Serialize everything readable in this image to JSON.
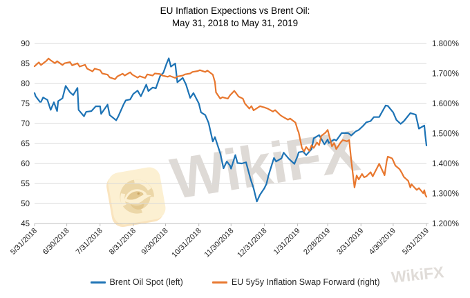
{
  "title": {
    "line1": "EU Inflation Expections vs Brent Oil:",
    "line2": "May 31, 2018 to May 31, 2019"
  },
  "watermark": {
    "center_text": "WikiFX",
    "corner_text": "WikiFX",
    "logo_icon": "wikifx-eagle-logo"
  },
  "legend": {
    "items": [
      {
        "label": "Brent Oil Spot (left)"
      },
      {
        "label": "EU 5y5y Inflation Swap Forward (right)"
      }
    ]
  },
  "colors": {
    "brent_blue": "#1d73b5",
    "inflation_orange": "#e8772e",
    "gridline": "#d9d9d9",
    "axis_line": "#bfbfbf",
    "axis_text": "#262626",
    "watermark_tile": "#fcf0d2",
    "watermark_emblem": "#ecd7a8"
  },
  "chart_data": {
    "type": "line",
    "title": "EU Inflation Expections vs Brent Oil: May 31, 2018 to May 31, 2019",
    "grid": true,
    "legend_position": "bottom",
    "x_axis": {
      "start_date": "2018-05-31",
      "end_date": "2019-05-31",
      "tick_dates": [
        "2018-05-31",
        "2018-06-30",
        "2018-07-31",
        "2018-08-31",
        "2018-09-30",
        "2018-10-31",
        "2018-11-30",
        "2018-12-31",
        "2019-01-31",
        "2019-02-28",
        "2019-03-31",
        "2019-04-30",
        "2019-05-31"
      ],
      "tick_labels": [
        "5/31/2018",
        "6/30/2018",
        "7/31/2018",
        "8/31/2018",
        "9/30/2018",
        "10/31/2018",
        "11/30/2018",
        "12/31/2018",
        "1/31/2019",
        "2/28/2019",
        "3/31/2019",
        "4/30/2019",
        "5/31/2019"
      ]
    },
    "left_axis": {
      "min": 45,
      "max": 90,
      "tick_step": 5,
      "tick_labels": [
        "90",
        "85",
        "80",
        "75",
        "70",
        "65",
        "60",
        "55",
        "50",
        "45"
      ]
    },
    "right_axis": {
      "min": 1.2,
      "max": 1.8,
      "tick_labels": [
        "1.800%",
        "1.700%",
        "1.600%",
        "1.500%",
        "1.400%",
        "1.300%",
        "1.200%"
      ]
    },
    "series": [
      {
        "name": "Brent Oil Spot (left)",
        "axis": "left",
        "color": "#1d73b5",
        "dates": [
          "2018-05-31",
          "2018-06-01",
          "2018-06-05",
          "2018-06-06",
          "2018-06-08",
          "2018-06-12",
          "2018-06-15",
          "2018-06-18",
          "2018-06-21",
          "2018-06-22",
          "2018-06-26",
          "2018-06-29",
          "2018-07-03",
          "2018-07-06",
          "2018-07-10",
          "2018-07-11",
          "2018-07-16",
          "2018-07-18",
          "2018-07-23",
          "2018-07-27",
          "2018-07-31",
          "2018-08-01",
          "2018-08-07",
          "2018-08-09",
          "2018-08-15",
          "2018-08-17",
          "2018-08-22",
          "2018-08-24",
          "2018-08-28",
          "2018-08-31",
          "2018-09-04",
          "2018-09-07",
          "2018-09-12",
          "2018-09-14",
          "2018-09-18",
          "2018-09-21",
          "2018-09-25",
          "2018-09-28",
          "2018-10-01",
          "2018-10-03",
          "2018-10-05",
          "2018-10-09",
          "2018-10-11",
          "2018-10-16",
          "2018-10-19",
          "2018-10-23",
          "2018-10-26",
          "2018-10-31",
          "2018-11-02",
          "2018-11-06",
          "2018-11-09",
          "2018-11-13",
          "2018-11-15",
          "2018-11-20",
          "2018-11-23",
          "2018-11-26",
          "2018-11-29",
          "2018-11-30",
          "2018-12-04",
          "2018-12-06",
          "2018-12-10",
          "2018-12-14",
          "2018-12-18",
          "2018-12-21",
          "2018-12-24",
          "2018-12-27",
          "2018-12-31",
          "2019-01-02",
          "2019-01-04",
          "2019-01-09",
          "2019-01-11",
          "2019-01-16",
          "2019-01-18",
          "2019-01-23",
          "2019-01-28",
          "2019-01-31",
          "2019-02-01",
          "2019-02-05",
          "2019-02-08",
          "2019-02-13",
          "2019-02-15",
          "2019-02-20",
          "2019-02-25",
          "2019-02-28",
          "2019-03-01",
          "2019-03-06",
          "2019-03-08",
          "2019-03-13",
          "2019-03-19",
          "2019-03-22",
          "2019-03-26",
          "2019-03-29",
          "2019-04-02",
          "2019-04-05",
          "2019-04-09",
          "2019-04-12",
          "2019-04-17",
          "2019-04-23",
          "2019-04-25",
          "2019-04-30",
          "2019-05-03",
          "2019-05-07",
          "2019-05-10",
          "2019-05-16",
          "2019-05-21",
          "2019-05-24",
          "2019-05-29",
          "2019-05-30",
          "2019-05-31"
        ],
        "values": [
          77.6,
          76.8,
          75.4,
          75.4,
          76.5,
          75.9,
          73.4,
          75.3,
          73.1,
          75.6,
          76.3,
          79.4,
          77.8,
          77.1,
          78.9,
          73.4,
          71.8,
          72.9,
          73.1,
          74.3,
          74.3,
          72.4,
          74.7,
          72.1,
          70.8,
          71.8,
          74.8,
          75.8,
          76.0,
          77.4,
          78.2,
          76.8,
          79.7,
          78.1,
          79.0,
          78.8,
          81.9,
          82.7,
          85.0,
          86.3,
          84.2,
          85.0,
          80.3,
          81.4,
          79.8,
          76.4,
          77.6,
          75.0,
          72.8,
          72.1,
          70.2,
          65.5,
          66.6,
          62.5,
          58.8,
          60.5,
          59.5,
          58.7,
          62.1,
          60.1,
          60.0,
          60.3,
          56.3,
          53.8,
          50.5,
          52.2,
          53.8,
          54.9,
          57.1,
          61.4,
          60.5,
          61.3,
          62.7,
          61.1,
          59.9,
          61.9,
          62.8,
          63.0,
          62.1,
          63.6,
          66.3,
          67.1,
          64.8,
          66.0,
          65.1,
          66.0,
          65.7,
          67.6,
          67.6,
          67.0,
          68.0,
          68.4,
          69.4,
          70.3,
          70.6,
          71.6,
          71.6,
          74.5,
          74.4,
          72.8,
          70.9,
          69.9,
          70.6,
          72.6,
          72.2,
          68.7,
          69.5,
          66.9,
          64.5
        ]
      },
      {
        "name": "EU 5y5y Inflation Swap Forward (right)",
        "axis": "right",
        "color": "#e8772e",
        "dates": [
          "2018-05-31",
          "2018-06-04",
          "2018-06-06",
          "2018-06-11",
          "2018-06-13",
          "2018-06-15",
          "2018-06-19",
          "2018-06-21",
          "2018-06-26",
          "2018-06-28",
          "2018-07-03",
          "2018-07-05",
          "2018-07-10",
          "2018-07-12",
          "2018-07-17",
          "2018-07-19",
          "2018-07-24",
          "2018-07-26",
          "2018-07-31",
          "2018-08-02",
          "2018-08-07",
          "2018-08-09",
          "2018-08-14",
          "2018-08-16",
          "2018-08-21",
          "2018-08-23",
          "2018-08-28",
          "2018-08-30",
          "2018-09-04",
          "2018-09-06",
          "2018-09-11",
          "2018-09-13",
          "2018-09-18",
          "2018-09-20",
          "2018-09-25",
          "2018-09-27",
          "2018-10-02",
          "2018-10-04",
          "2018-10-09",
          "2018-10-11",
          "2018-10-16",
          "2018-10-18",
          "2018-10-23",
          "2018-10-25",
          "2018-10-30",
          "2018-11-01",
          "2018-11-06",
          "2018-11-08",
          "2018-11-13",
          "2018-11-15",
          "2018-11-16",
          "2018-11-20",
          "2018-11-22",
          "2018-11-27",
          "2018-11-29",
          "2018-12-03",
          "2018-12-05",
          "2018-12-07",
          "2018-12-11",
          "2018-12-13",
          "2018-12-17",
          "2018-12-19",
          "2018-12-21",
          "2018-12-27",
          "2018-12-31",
          "2019-01-03",
          "2019-01-08",
          "2019-01-10",
          "2019-01-15",
          "2019-01-17",
          "2019-01-22",
          "2019-01-24",
          "2019-01-29",
          "2019-01-31",
          "2019-02-01",
          "2019-02-04",
          "2019-02-06",
          "2019-02-08",
          "2019-02-11",
          "2019-02-13",
          "2019-02-15",
          "2019-02-18",
          "2019-02-20",
          "2019-02-22",
          "2019-02-26",
          "2019-02-28",
          "2019-03-04",
          "2019-03-06",
          "2019-03-08",
          "2019-03-12",
          "2019-03-14",
          "2019-03-18",
          "2019-03-20",
          "2019-03-22",
          "2019-03-25",
          "2019-03-27",
          "2019-03-29",
          "2019-04-01",
          "2019-04-03",
          "2019-04-05",
          "2019-04-09",
          "2019-04-11",
          "2019-04-15",
          "2019-04-17",
          "2019-04-22",
          "2019-04-24",
          "2019-04-25",
          "2019-04-29",
          "2019-04-30",
          "2019-05-02",
          "2019-05-06",
          "2019-05-08",
          "2019-05-10",
          "2019-05-14",
          "2019-05-16",
          "2019-05-17",
          "2019-05-20",
          "2019-05-22",
          "2019-05-24",
          "2019-05-28",
          "2019-05-29",
          "2019-05-30",
          "2019-05-31"
        ],
        "values": [
          1.724,
          1.737,
          1.728,
          1.742,
          1.75,
          1.744,
          1.734,
          1.741,
          1.728,
          1.734,
          1.738,
          1.727,
          1.734,
          1.723,
          1.729,
          1.716,
          1.707,
          1.716,
          1.711,
          1.7,
          1.696,
          1.687,
          1.681,
          1.69,
          1.699,
          1.693,
          1.704,
          1.696,
          1.686,
          1.691,
          1.685,
          1.697,
          1.693,
          1.7,
          1.698,
          1.693,
          1.689,
          1.692,
          1.685,
          1.69,
          1.693,
          1.697,
          1.7,
          1.705,
          1.708,
          1.711,
          1.705,
          1.71,
          1.696,
          1.671,
          1.637,
          1.616,
          1.621,
          1.616,
          1.627,
          1.642,
          1.633,
          1.623,
          1.616,
          1.599,
          1.583,
          1.591,
          1.577,
          1.591,
          1.587,
          1.583,
          1.573,
          1.578,
          1.561,
          1.556,
          1.546,
          1.55,
          1.536,
          1.512,
          1.504,
          1.452,
          1.44,
          1.455,
          1.442,
          1.461,
          1.452,
          1.47,
          1.461,
          1.492,
          1.503,
          1.512,
          1.457,
          1.468,
          1.448,
          1.47,
          1.478,
          1.474,
          1.478,
          1.408,
          1.32,
          1.36,
          1.347,
          1.365,
          1.354,
          1.357,
          1.371,
          1.357,
          1.385,
          1.399,
          1.361,
          1.408,
          1.423,
          1.417,
          1.41,
          1.393,
          1.381,
          1.369,
          1.355,
          1.342,
          1.32,
          1.331,
          1.319,
          1.312,
          1.318,
          1.301,
          1.311,
          1.296,
          1.289
        ]
      }
    ]
  }
}
